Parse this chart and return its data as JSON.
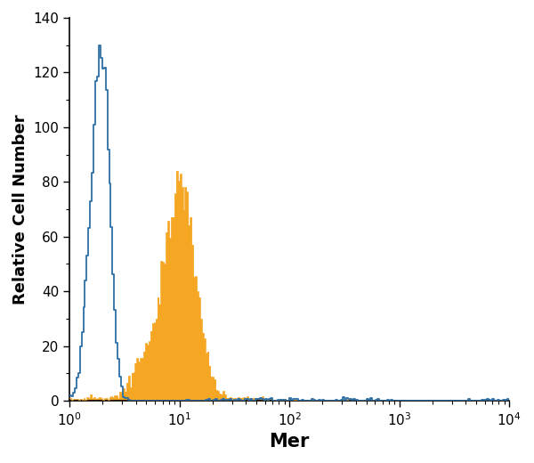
{
  "title": "",
  "xlabel": "Mer",
  "ylabel": "Relative Cell Number",
  "xlim": [
    1,
    10000
  ],
  "ylim": [
    0,
    140
  ],
  "yticks": [
    0,
    20,
    40,
    60,
    80,
    100,
    120,
    140
  ],
  "blue_color": "#2C6EA5",
  "orange_color": "#F5A623",
  "background_color": "#FFFFFF",
  "xlabel_fontsize": 15,
  "ylabel_fontsize": 13,
  "tick_fontsize": 11,
  "blue_linewidth": 1.3,
  "orange_linewidth": 0.0
}
